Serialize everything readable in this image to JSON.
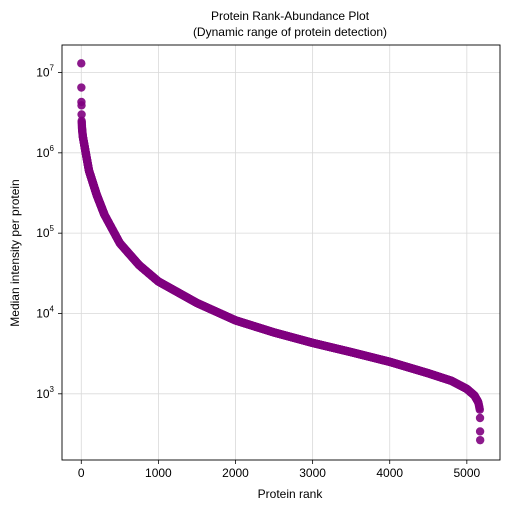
{
  "chart_data": {
    "type": "scatter",
    "title": "Protein Rank-Abundance Plot",
    "subtitle": "(Dynamic range of protein detection)",
    "xlabel": "Protein rank",
    "ylabel": "Median intensity per protein",
    "xlim": [
      -250,
      5430
    ],
    "ylim": [
      150,
      22000000
    ],
    "yscale": "log",
    "grid": true,
    "x_ticks": [
      0,
      1000,
      2000,
      3000,
      4000,
      5000
    ],
    "x_tick_labels": [
      "0",
      "1000",
      "2000",
      "3000",
      "4000",
      "5000"
    ],
    "y_ticks": [
      1000,
      10000,
      100000,
      1000000,
      10000000
    ],
    "y_tick_labels": [
      {
        "base": "10",
        "exp": "3"
      },
      {
        "base": "10",
        "exp": "4"
      },
      {
        "base": "10",
        "exp": "5"
      },
      {
        "base": "10",
        "exp": "6"
      },
      {
        "base": "10",
        "exp": "7"
      }
    ],
    "marker_color": "#800080",
    "n_points": 5174,
    "top_points": [
      {
        "x": 0,
        "y": 13000000
      },
      {
        "x": 1,
        "y": 6500000
      },
      {
        "x": 2,
        "y": 4300000
      },
      {
        "x": 3,
        "y": 3900000
      },
      {
        "x": 4,
        "y": 3000000
      }
    ],
    "bottom_points": [
      {
        "x": 5171,
        "y": 500
      },
      {
        "x": 5172,
        "y": 340
      },
      {
        "x": 5173,
        "y": 265
      }
    ],
    "curve_knots": [
      {
        "x": 5,
        "y": 2500000
      },
      {
        "x": 10,
        "y": 2000000
      },
      {
        "x": 20,
        "y": 1600000
      },
      {
        "x": 50,
        "y": 1100000
      },
      {
        "x": 100,
        "y": 600000
      },
      {
        "x": 200,
        "y": 300000
      },
      {
        "x": 300,
        "y": 170000
      },
      {
        "x": 500,
        "y": 75000
      },
      {
        "x": 750,
        "y": 40000
      },
      {
        "x": 1000,
        "y": 25000
      },
      {
        "x": 1500,
        "y": 13500
      },
      {
        "x": 2000,
        "y": 8200
      },
      {
        "x": 2500,
        "y": 5800
      },
      {
        "x": 3000,
        "y": 4300
      },
      {
        "x": 3500,
        "y": 3300
      },
      {
        "x": 4000,
        "y": 2500
      },
      {
        "x": 4500,
        "y": 1800
      },
      {
        "x": 4800,
        "y": 1450
      },
      {
        "x": 5000,
        "y": 1150
      },
      {
        "x": 5100,
        "y": 950
      },
      {
        "x": 5150,
        "y": 780
      },
      {
        "x": 5170,
        "y": 620
      }
    ]
  }
}
